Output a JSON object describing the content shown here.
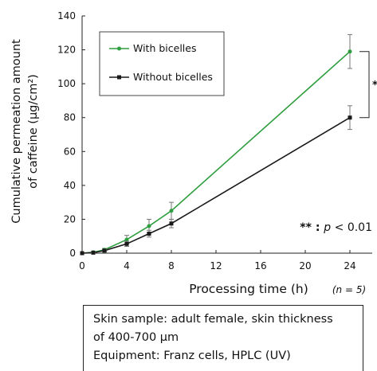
{
  "chart_data": {
    "type": "line",
    "title": "",
    "xlabel": "Processing time (h)",
    "ylabel_lines": [
      "Cumulative permeation amount",
      "of caffeine (µg/cm²)"
    ],
    "x_ticks": [
      0,
      4,
      8,
      12,
      16,
      20,
      24
    ],
    "y_ticks": [
      0,
      20,
      40,
      60,
      80,
      100,
      120,
      140
    ],
    "xlim": [
      0,
      26
    ],
    "ylim": [
      0,
      140
    ],
    "grid": false,
    "legend_position": "top-left",
    "x": [
      0,
      1,
      2,
      4,
      6,
      8,
      24
    ],
    "series": [
      {
        "name": "With bicelles",
        "color": "#2e9e3e",
        "values": [
          0,
          0.5,
          2,
          8,
          16,
          25,
          119
        ],
        "errors": [
          0,
          0.3,
          0.8,
          2.5,
          4,
          5,
          10
        ]
      },
      {
        "name": "Without bicelles",
        "color": "#1a1a1a",
        "values": [
          0,
          0.3,
          1.5,
          5.5,
          11.5,
          17.5,
          80
        ],
        "errors": [
          0,
          0.2,
          0.6,
          1.5,
          2,
          2.5,
          7
        ]
      }
    ],
    "significance_marker": "**",
    "significance_note": "** : p < 0.01",
    "sample_size_note": "(n = 5)"
  },
  "notes": {
    "line1": "Skin sample: adult female, skin thickness",
    "line2": "of 400-700 µm",
    "line3": "Equipment: Franz cells, HPLC (UV)"
  }
}
